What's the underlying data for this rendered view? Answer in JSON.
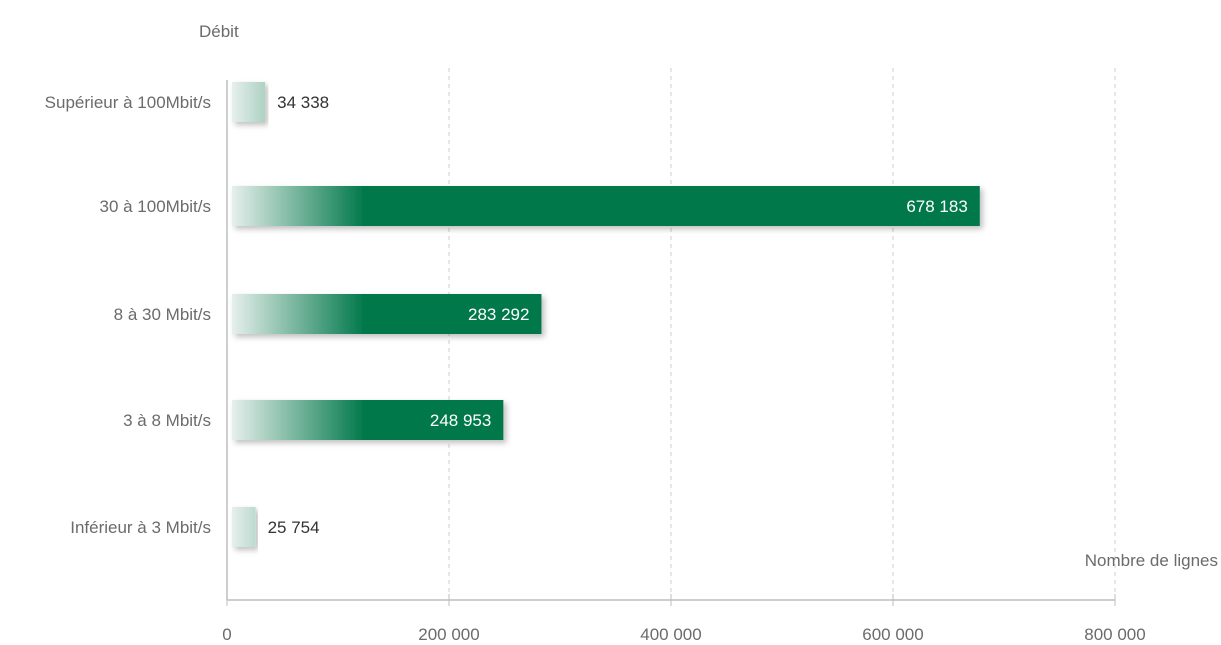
{
  "chart_data": {
    "type": "bar",
    "orientation": "horizontal",
    "ylabel": "Débit",
    "xlabel": "Nombre de lignes",
    "categories": [
      "Supérieur à 100Mbit/s",
      "30 à 100Mbit/s",
      "8 à 30 Mbit/s",
      "3 à 8 Mbit/s",
      "Inférieur à 3 Mbit/s"
    ],
    "values": [
      34338,
      678183,
      283292,
      248953,
      25754
    ],
    "value_labels": [
      "34 338",
      "678 183",
      "283 292",
      "248 953",
      "25 754"
    ],
    "xlim": [
      0,
      800000
    ],
    "x_ticks": [
      0,
      200000,
      400000,
      600000,
      800000
    ],
    "x_tick_labels": [
      "0",
      "200 000",
      "400 000",
      "600 000",
      "800 000"
    ],
    "grid": "vertical dashed",
    "colors": {
      "bar": "#00784a",
      "bar_fade": "#e6efec",
      "text": "#6b6b6b",
      "value_label_inside": "#ffffff",
      "value_label_outside": "#333333",
      "axis": "#bdbdbd",
      "grid": "#cfcfcf"
    }
  }
}
